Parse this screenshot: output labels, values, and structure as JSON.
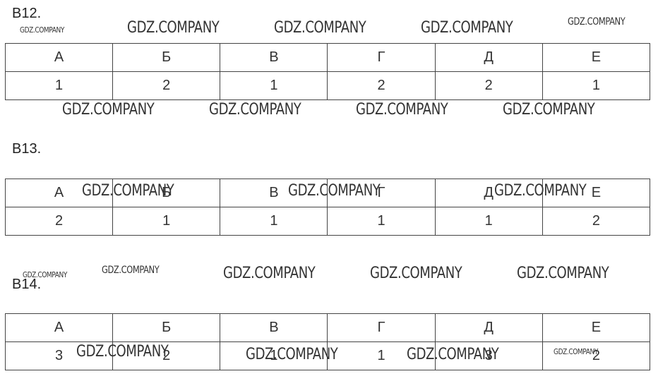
{
  "watermark": "GDZ.COMPANY",
  "tasks": [
    {
      "label": "B12.",
      "headers": [
        "А",
        "Б",
        "В",
        "Г",
        "Д",
        "Е"
      ],
      "answers": [
        "1",
        "2",
        "1",
        "2",
        "2",
        "1"
      ]
    },
    {
      "label": "B13.",
      "headers": [
        "А",
        "Б",
        "В",
        "Г",
        "Д",
        "Е"
      ],
      "answers": [
        "2",
        "1",
        "1",
        "1",
        "1",
        "2"
      ]
    },
    {
      "label": "B14.",
      "headers": [
        "А",
        "Б",
        "В",
        "Г",
        "Д",
        "Е"
      ],
      "answers": [
        "3",
        "2",
        "1",
        "1",
        "3",
        "2"
      ]
    }
  ]
}
